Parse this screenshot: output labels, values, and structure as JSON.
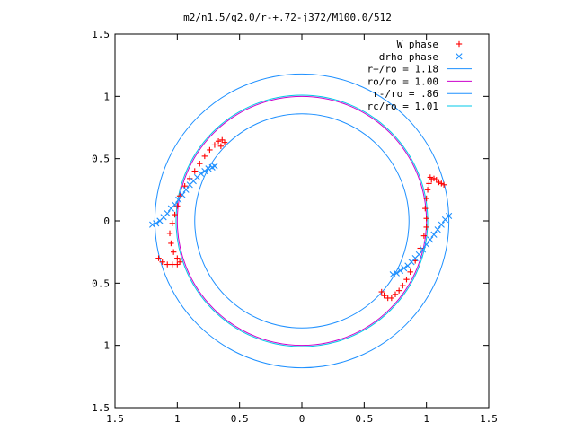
{
  "chart_data": {
    "type": "scatter",
    "title": "m2/n1.5/q2.0/r-+.72-j372/M100.0/512",
    "xlabel": "",
    "ylabel": "",
    "xlim": [
      -1.5,
      1.5
    ],
    "ylim": [
      -1.5,
      1.5
    ],
    "x_ticks": [
      -1.5,
      -1,
      -0.5,
      0,
      0.5,
      1,
      1.5
    ],
    "y_ticks": [
      1.5,
      1,
      0.5,
      0,
      -0.5,
      -1,
      -1.5
    ],
    "x_tick_labels": [
      "1.5",
      "1",
      "0.5",
      "0",
      "0.5",
      "1",
      "1.5"
    ],
    "y_tick_labels": [
      "1.5",
      "1",
      "0.5",
      "0",
      "0.5",
      "1",
      "1.5"
    ],
    "grid": false,
    "legend_position": "top-right",
    "legend": [
      {
        "label": "W phase",
        "marker": "plus",
        "color": "#ff0000"
      },
      {
        "label": "drho phase",
        "marker": "cross",
        "color": "#1e90ff"
      },
      {
        "label": "r+/ro = 1.18",
        "marker": "line",
        "color": "#1e90ff"
      },
      {
        "label": "ro/ro = 1.00",
        "marker": "line",
        "color": "#cc00cc"
      },
      {
        "label": "r-/ro = .86",
        "marker": "line",
        "color": "#1e90ff"
      },
      {
        "label": "rc/ro = 1.01",
        "marker": "line",
        "color": "#00c8e8"
      }
    ],
    "circles": [
      {
        "name": "r+/ro = 1.18",
        "r": 1.18,
        "color": "#1e90ff"
      },
      {
        "name": "ro/ro = 1.00",
        "r": 1.0,
        "color": "#cc00cc"
      },
      {
        "name": "r-/ro = .86",
        "r": 0.86,
        "color": "#1e90ff"
      },
      {
        "name": "rc/ro = 1.01",
        "r": 1.01,
        "color": "#00c8e8"
      }
    ],
    "series": [
      {
        "name": "W phase",
        "marker": "plus",
        "color": "#ff0000",
        "points": [
          [
            -1.15,
            -0.3
          ],
          [
            -1.12,
            -0.33
          ],
          [
            -1.08,
            -0.35
          ],
          [
            -1.04,
            -0.35
          ],
          [
            -1.0,
            -0.35
          ],
          [
            -0.98,
            -0.33
          ],
          [
            -1.0,
            -0.3
          ],
          [
            -1.03,
            -0.25
          ],
          [
            -1.05,
            -0.18
          ],
          [
            -1.06,
            -0.1
          ],
          [
            -1.04,
            -0.02
          ],
          [
            -1.02,
            0.05
          ],
          [
            -1.0,
            0.12
          ],
          [
            -0.98,
            0.2
          ],
          [
            -0.94,
            0.28
          ],
          [
            -0.9,
            0.34
          ],
          [
            -0.86,
            0.4
          ],
          [
            -0.82,
            0.46
          ],
          [
            -0.78,
            0.52
          ],
          [
            -0.74,
            0.57
          ],
          [
            -0.7,
            0.61
          ],
          [
            -0.67,
            0.64
          ],
          [
            -0.64,
            0.65
          ],
          [
            -0.62,
            0.63
          ],
          [
            -0.65,
            0.6
          ],
          [
            1.03,
            0.35
          ],
          [
            1.06,
            0.34
          ],
          [
            1.1,
            0.31
          ],
          [
            1.14,
            0.29
          ],
          [
            1.12,
            0.3
          ],
          [
            1.08,
            0.33
          ],
          [
            1.04,
            0.33
          ],
          [
            1.02,
            0.3
          ],
          [
            1.01,
            0.25
          ],
          [
            1.0,
            0.18
          ],
          [
            0.99,
            0.1
          ],
          [
            1.0,
            0.02
          ],
          [
            1.0,
            -0.05
          ],
          [
            0.98,
            -0.12
          ],
          [
            0.95,
            -0.22
          ],
          [
            0.91,
            -0.32
          ],
          [
            0.87,
            -0.41
          ],
          [
            0.84,
            -0.47
          ],
          [
            0.81,
            -0.52
          ],
          [
            0.78,
            -0.56
          ],
          [
            0.75,
            -0.59
          ],
          [
            0.72,
            -0.62
          ],
          [
            0.69,
            -0.62
          ],
          [
            0.66,
            -0.6
          ],
          [
            0.64,
            -0.57
          ]
        ]
      },
      {
        "name": "drho phase",
        "marker": "cross",
        "color": "#1e90ff",
        "points": [
          [
            -1.2,
            -0.03
          ],
          [
            -1.17,
            -0.02
          ],
          [
            -1.14,
            0.0
          ],
          [
            -1.11,
            0.03
          ],
          [
            -1.08,
            0.06
          ],
          [
            -1.05,
            0.1
          ],
          [
            -1.02,
            0.13
          ],
          [
            -0.99,
            0.17
          ],
          [
            -0.96,
            0.21
          ],
          [
            -0.93,
            0.25
          ],
          [
            -0.9,
            0.29
          ],
          [
            -0.87,
            0.32
          ],
          [
            -0.84,
            0.35
          ],
          [
            -0.81,
            0.38
          ],
          [
            -0.78,
            0.4
          ],
          [
            -0.75,
            0.42
          ],
          [
            -0.72,
            0.43
          ],
          [
            -0.7,
            0.44
          ],
          [
            1.18,
            0.04
          ],
          [
            1.15,
            0.01
          ],
          [
            1.12,
            -0.03
          ],
          [
            1.09,
            -0.07
          ],
          [
            1.06,
            -0.11
          ],
          [
            1.03,
            -0.15
          ],
          [
            1.0,
            -0.19
          ],
          [
            0.97,
            -0.23
          ],
          [
            0.94,
            -0.27
          ],
          [
            0.91,
            -0.3
          ],
          [
            0.88,
            -0.33
          ],
          [
            0.85,
            -0.36
          ],
          [
            0.82,
            -0.38
          ],
          [
            0.79,
            -0.4
          ],
          [
            0.76,
            -0.42
          ],
          [
            0.73,
            -0.43
          ]
        ]
      }
    ]
  }
}
